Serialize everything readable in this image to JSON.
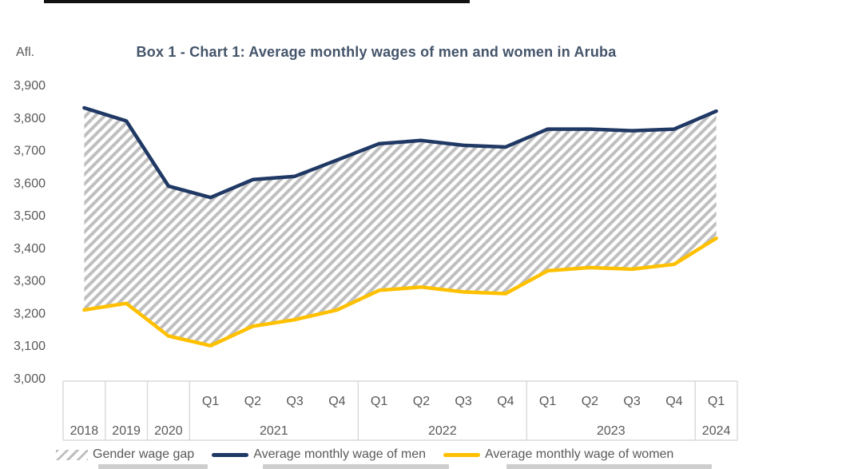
{
  "chart": {
    "unit_label": "Afl.",
    "legend": {
      "gap_label": "Gender wage gap",
      "men_label": "Average monthly wage of men",
      "women_label": "Average monthly wage of women"
    }
  },
  "chart_data": {
    "type": "area",
    "title": "Box 1 - Chart 1: Average monthly wages of men and women in Aruba",
    "ylabel": "Afl.",
    "ylim": [
      3000,
      3900
    ],
    "y_tick_step": 100,
    "grid": false,
    "legend_position": "bottom",
    "gap_label": "Gender wage gap",
    "hatch_color": "#bfbfbf",
    "axis_text_color": "#595959",
    "table_border_color": "#d9d9d9",
    "x_groups": [
      {
        "year": "2018",
        "quarters": [
          ""
        ]
      },
      {
        "year": "2019",
        "quarters": [
          ""
        ]
      },
      {
        "year": "2020",
        "quarters": [
          ""
        ]
      },
      {
        "year": "2021",
        "quarters": [
          "Q1",
          "Q2",
          "Q3",
          "Q4"
        ]
      },
      {
        "year": "2022",
        "quarters": [
          "Q1",
          "Q2",
          "Q3",
          "Q4"
        ]
      },
      {
        "year": "2023",
        "quarters": [
          "Q1",
          "Q2",
          "Q3",
          "Q4"
        ]
      },
      {
        "year": "2024",
        "quarters": [
          "Q1"
        ]
      }
    ],
    "categories": [
      "2018",
      "2019",
      "2020",
      "2021 Q1",
      "2021 Q2",
      "2021 Q3",
      "2021 Q4",
      "2022 Q1",
      "2022 Q2",
      "2022 Q3",
      "2022 Q4",
      "2023 Q1",
      "2023 Q2",
      "2023 Q3",
      "2023 Q4",
      "2024 Q1"
    ],
    "series": [
      {
        "name": "Average monthly wage of men",
        "color": "#1f3864",
        "values": [
          3830,
          3790,
          3590,
          3555,
          3610,
          3620,
          3670,
          3720,
          3730,
          3715,
          3710,
          3765,
          3765,
          3760,
          3765,
          3820
        ]
      },
      {
        "name": "Average monthly wage of women",
        "color": "#ffc000",
        "values": [
          3210,
          3230,
          3130,
          3100,
          3160,
          3180,
          3210,
          3270,
          3280,
          3265,
          3260,
          3330,
          3340,
          3335,
          3350,
          3430
        ]
      }
    ]
  }
}
